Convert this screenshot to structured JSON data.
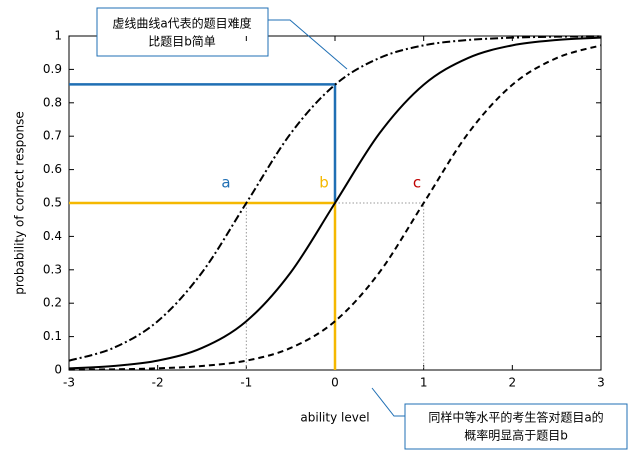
{
  "chart_data": {
    "type": "line",
    "x_label": "ability level",
    "y_label": "probability of correct response",
    "x": [
      -3,
      -2.5,
      -2,
      -1.5,
      -1,
      -0.5,
      0,
      0.5,
      1,
      1.5,
      2,
      2.5,
      3
    ],
    "series": [
      {
        "name": "a",
        "color": "#000000",
        "style": "dashdot",
        "label_color": "#1f6fb4",
        "values": [
          0.028,
          0.066,
          0.146,
          0.292,
          0.5,
          0.708,
          0.854,
          0.934,
          0.972,
          0.988,
          0.995,
          0.998,
          0.999
        ]
      },
      {
        "name": "b",
        "color": "#000000",
        "style": "solid",
        "label_color": "#f5b800",
        "values": [
          0.005,
          0.012,
          0.028,
          0.066,
          0.146,
          0.292,
          0.5,
          0.708,
          0.854,
          0.934,
          0.972,
          0.988,
          0.995
        ]
      },
      {
        "name": "c",
        "color": "#000000",
        "style": "dashed",
        "label_color": "#c00000",
        "values": [
          0.001,
          0.002,
          0.005,
          0.012,
          0.028,
          0.066,
          0.146,
          0.292,
          0.5,
          0.708,
          0.854,
          0.934,
          0.972
        ]
      }
    ],
    "guides": [
      {
        "color": "#1f6fb4",
        "style": "solid",
        "x": [
          -3,
          0,
          0
        ],
        "y": [
          0.855,
          0.855,
          0.5
        ]
      },
      {
        "color": "#f5b800",
        "style": "solid",
        "x": [
          -3,
          0,
          0
        ],
        "y": [
          0.5,
          0.5,
          0
        ]
      },
      {
        "color": "#999999",
        "style": "dotted",
        "x": [
          -1,
          -1
        ],
        "y": [
          0,
          0.5
        ]
      },
      {
        "color": "#999999",
        "style": "dotted",
        "x": [
          0,
          1,
          1
        ],
        "y": [
          0.5,
          0.5,
          0
        ]
      }
    ],
    "xlim": [
      -3,
      3
    ],
    "xticks": [
      -3,
      -2,
      -1,
      0,
      1,
      2,
      3
    ],
    "ylim": [
      0,
      1
    ],
    "yticks": [
      0,
      0.1,
      0.2,
      0.3,
      0.4,
      0.5,
      0.6,
      0.7,
      0.8,
      0.9,
      1
    ],
    "callouts": [
      {
        "lines": [
          "虚线曲线a代表的题目难度",
          "比题目b简单"
        ]
      },
      {
        "lines": [
          "同样中等水平的考生答对题目a的",
          "概率明显高于题目b"
        ]
      }
    ]
  }
}
